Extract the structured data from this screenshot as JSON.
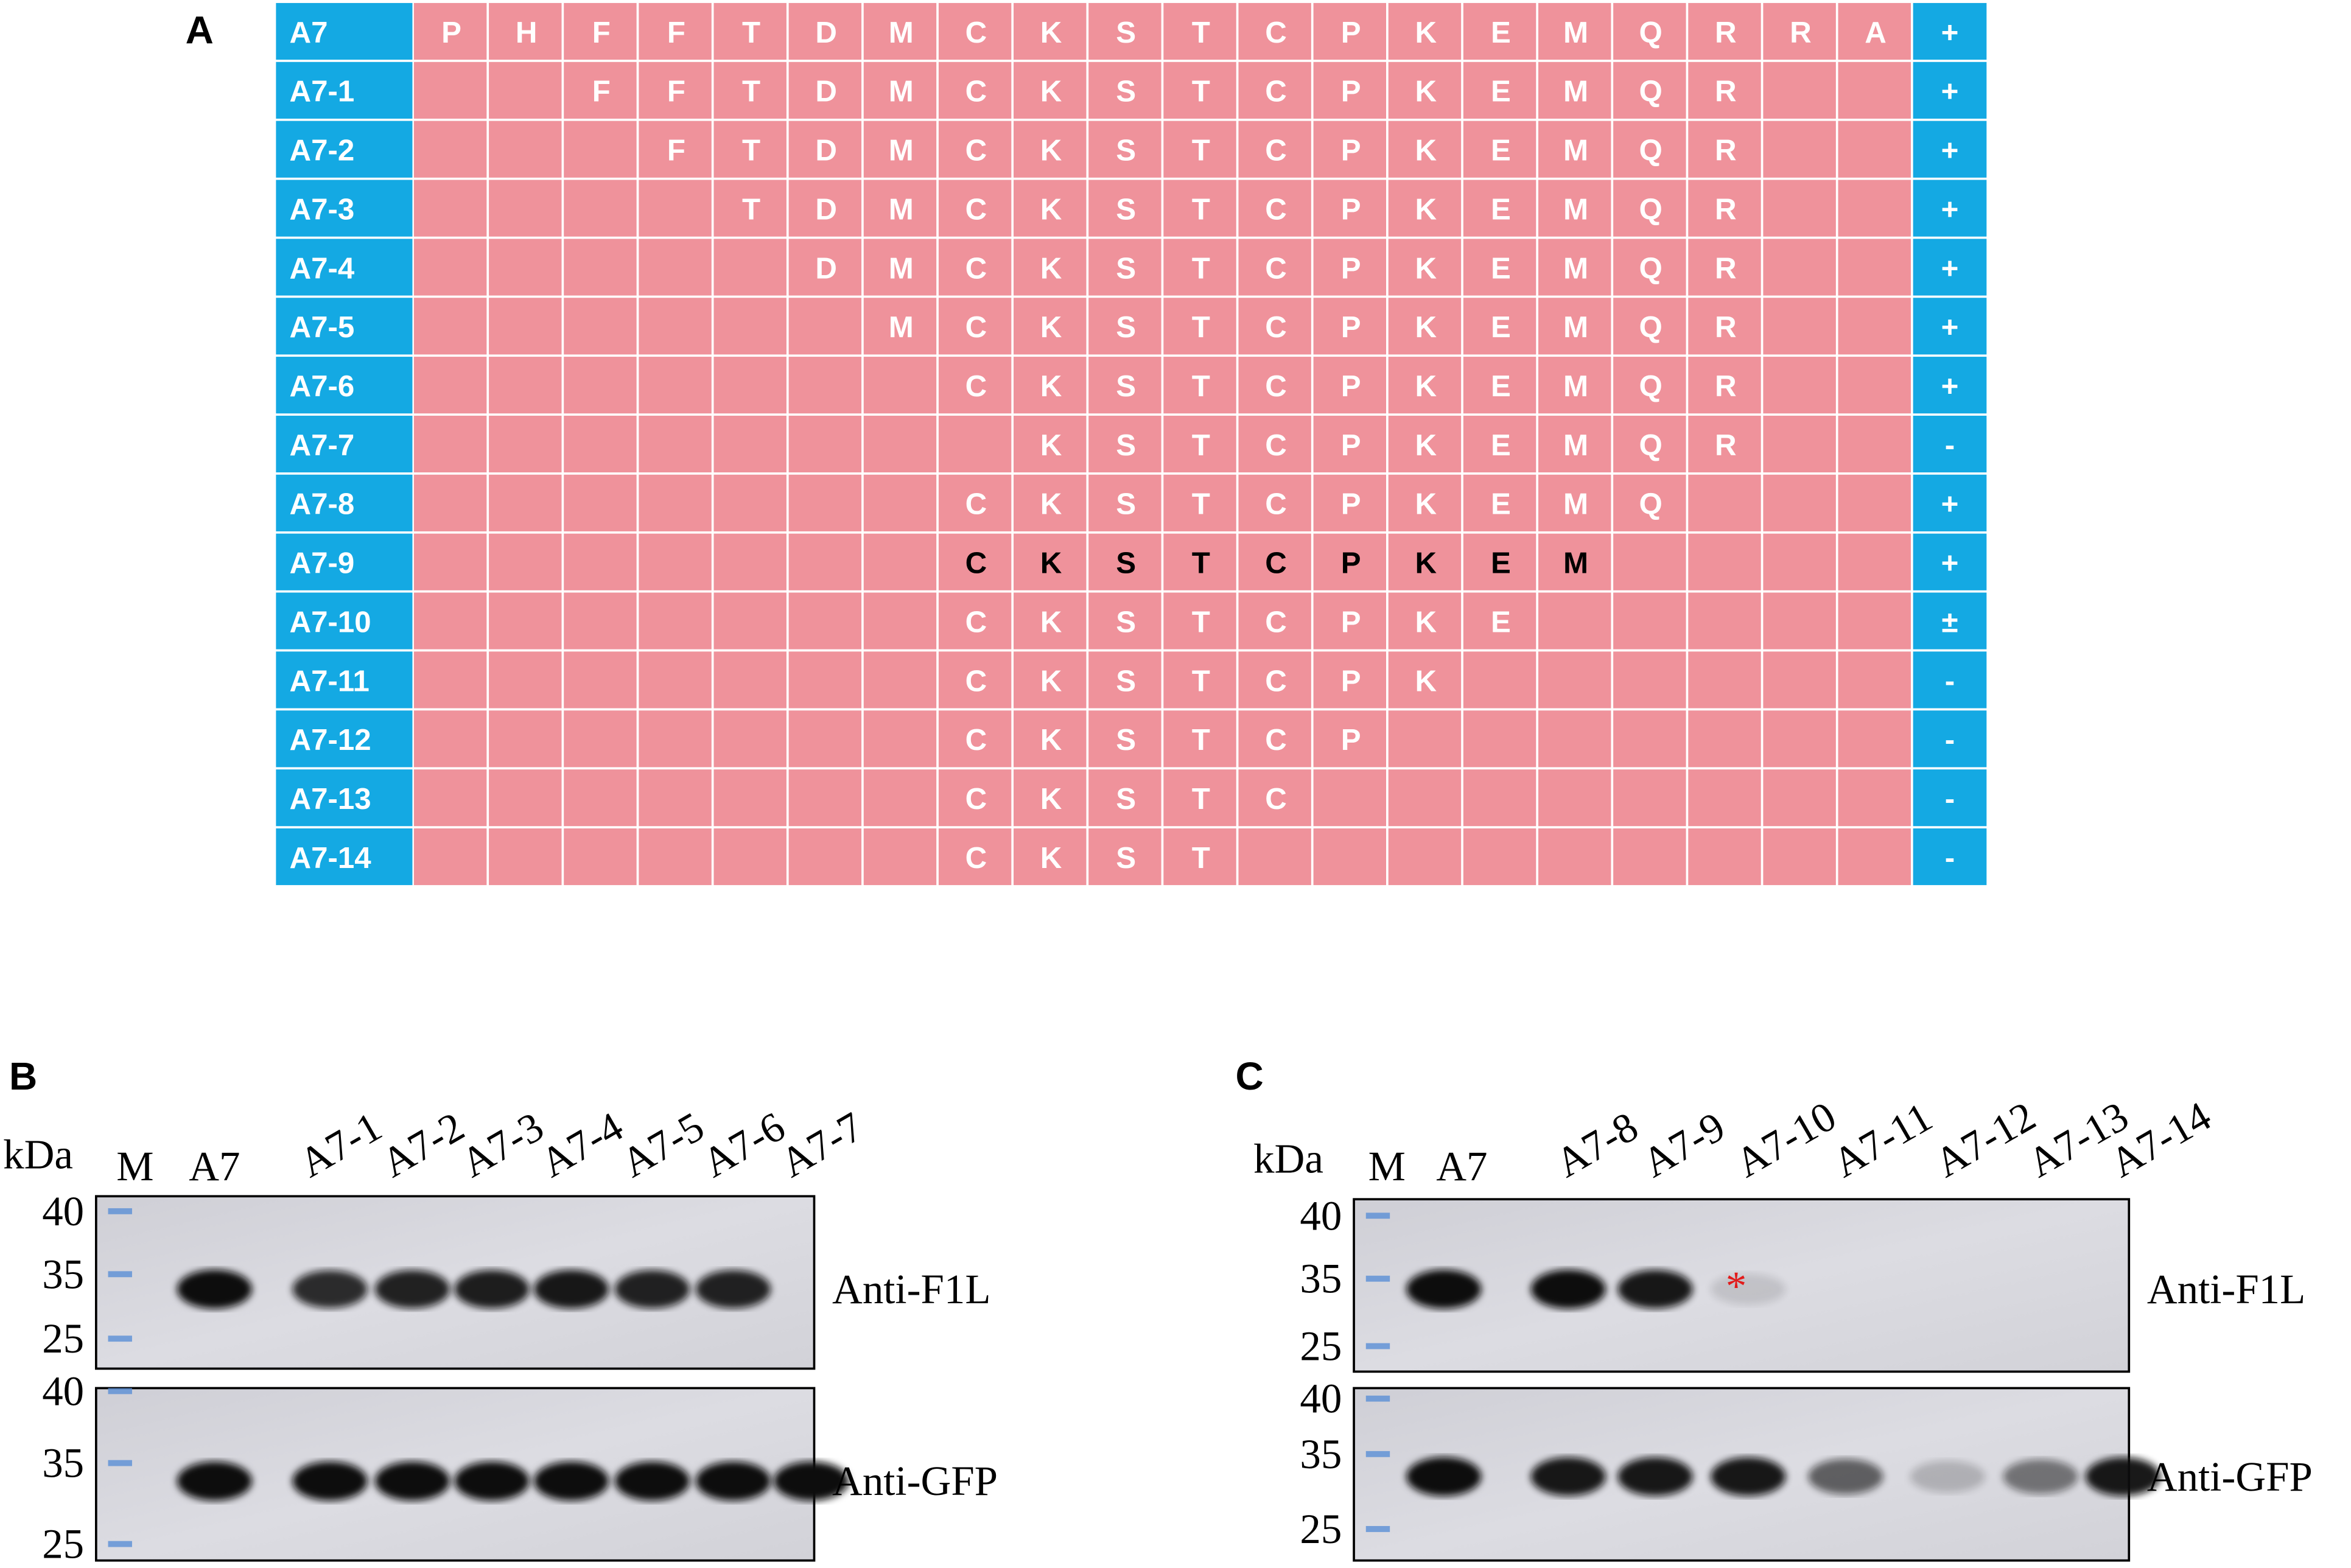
{
  "panel_a": {
    "label": "A",
    "rows": [
      {
        "name": "A7",
        "residues": [
          "P",
          "H",
          "F",
          "F",
          "T",
          "D",
          "M",
          "C",
          "K",
          "S",
          "T",
          "C",
          "P",
          "K",
          "E",
          "M",
          "Q",
          "R",
          "R",
          "A"
        ],
        "result": "+"
      },
      {
        "name": "A7-1",
        "residues": [
          null,
          null,
          "F",
          "F",
          "T",
          "D",
          "M",
          "C",
          "K",
          "S",
          "T",
          "C",
          "P",
          "K",
          "E",
          "M",
          "Q",
          "R",
          null,
          null
        ],
        "result": "+"
      },
      {
        "name": "A7-2",
        "residues": [
          null,
          null,
          null,
          "F",
          "T",
          "D",
          "M",
          "C",
          "K",
          "S",
          "T",
          "C",
          "P",
          "K",
          "E",
          "M",
          "Q",
          "R",
          null,
          null
        ],
        "result": "+"
      },
      {
        "name": "A7-3",
        "residues": [
          null,
          null,
          null,
          null,
          "T",
          "D",
          "M",
          "C",
          "K",
          "S",
          "T",
          "C",
          "P",
          "K",
          "E",
          "M",
          "Q",
          "R",
          null,
          null
        ],
        "result": "+"
      },
      {
        "name": "A7-4",
        "residues": [
          null,
          null,
          null,
          null,
          null,
          "D",
          "M",
          "C",
          "K",
          "S",
          "T",
          "C",
          "P",
          "K",
          "E",
          "M",
          "Q",
          "R",
          null,
          null
        ],
        "result": "+"
      },
      {
        "name": "A7-5",
        "residues": [
          null,
          null,
          null,
          null,
          null,
          null,
          "M",
          "C",
          "K",
          "S",
          "T",
          "C",
          "P",
          "K",
          "E",
          "M",
          "Q",
          "R",
          null,
          null
        ],
        "result": "+"
      },
      {
        "name": "A7-6",
        "residues": [
          null,
          null,
          null,
          null,
          null,
          null,
          null,
          "C",
          "K",
          "S",
          "T",
          "C",
          "P",
          "K",
          "E",
          "M",
          "Q",
          "R",
          null,
          null
        ],
        "result": "+"
      },
      {
        "name": "A7-7",
        "residues": [
          null,
          null,
          null,
          null,
          null,
          null,
          null,
          null,
          "K",
          "S",
          "T",
          "C",
          "P",
          "K",
          "E",
          "M",
          "Q",
          "R",
          null,
          null
        ],
        "result": "-"
      },
      {
        "name": "A7-8",
        "residues": [
          null,
          null,
          null,
          null,
          null,
          null,
          null,
          "C",
          "K",
          "S",
          "T",
          "C",
          "P",
          "K",
          "E",
          "M",
          "Q",
          null,
          null,
          null
        ],
        "result": "+"
      },
      {
        "name": "A7-9",
        "residues": [
          null,
          null,
          null,
          null,
          null,
          null,
          null,
          "C",
          "K",
          "S",
          "T",
          "C",
          "P",
          "K",
          "E",
          "M",
          null,
          null,
          null,
          null
        ],
        "result": "+",
        "highlight": true
      },
      {
        "name": "A7-10",
        "residues": [
          null,
          null,
          null,
          null,
          null,
          null,
          null,
          "C",
          "K",
          "S",
          "T",
          "C",
          "P",
          "K",
          "E",
          null,
          null,
          null,
          null,
          null
        ],
        "result": "±"
      },
      {
        "name": "A7-11",
        "residues": [
          null,
          null,
          null,
          null,
          null,
          null,
          null,
          "C",
          "K",
          "S",
          "T",
          "C",
          "P",
          "K",
          null,
          null,
          null,
          null,
          null,
          null
        ],
        "result": "-"
      },
      {
        "name": "A7-12",
        "residues": [
          null,
          null,
          null,
          null,
          null,
          null,
          null,
          "C",
          "K",
          "S",
          "T",
          "C",
          "P",
          null,
          null,
          null,
          null,
          null,
          null,
          null
        ],
        "result": "-"
      },
      {
        "name": "A7-13",
        "residues": [
          null,
          null,
          null,
          null,
          null,
          null,
          null,
          "C",
          "K",
          "S",
          "T",
          "C",
          null,
          null,
          null,
          null,
          null,
          null,
          null,
          null
        ],
        "result": "-"
      },
      {
        "name": "A7-14",
        "residues": [
          null,
          null,
          null,
          null,
          null,
          null,
          null,
          "C",
          "K",
          "S",
          "T",
          null,
          null,
          null,
          null,
          null,
          null,
          null,
          null,
          null
        ],
        "result": "-"
      }
    ]
  },
  "panel_b": {
    "label": "B",
    "unit": "kDa",
    "lanes": [
      "M",
      "A7",
      "A7-1",
      "A7-2",
      "A7-3",
      "A7-4",
      "A7-5",
      "A7-6",
      "A7-7"
    ],
    "markers": [
      40,
      35,
      25
    ],
    "antibodies": [
      "Anti-F1L",
      "Anti-GFP"
    ]
  },
  "panel_c": {
    "label": "C",
    "unit": "kDa",
    "lanes": [
      "M",
      "A7",
      "A7-8",
      "A7-9",
      "A7-10",
      "A7-11",
      "A7-12",
      "A7-13",
      "A7-14"
    ],
    "markers": [
      40,
      35,
      25
    ],
    "antibodies": [
      "Anti-F1L",
      "Anti-GFP"
    ],
    "annotation": "*"
  }
}
